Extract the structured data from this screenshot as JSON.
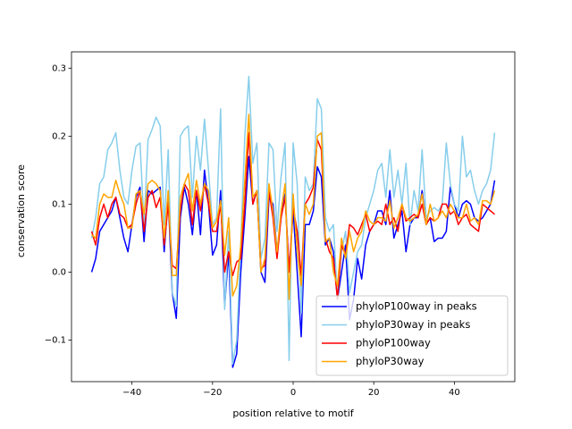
{
  "chart_data": {
    "type": "line",
    "xlabel": "position relative to motif",
    "ylabel": "conservation score",
    "x": [
      -50,
      -49,
      -48,
      -47,
      -46,
      -45,
      -44,
      -43,
      -42,
      -41,
      -40,
      -39,
      -38,
      -37,
      -36,
      -35,
      -34,
      -33,
      -32,
      -31,
      -30,
      -29,
      -28,
      -27,
      -26,
      -25,
      -24,
      -23,
      -22,
      -21,
      -20,
      -19,
      -18,
      -17,
      -16,
      -15,
      -14,
      -13,
      -12,
      -11,
      -10,
      -9,
      -8,
      -7,
      -6,
      -5,
      -4,
      -3,
      -2,
      -1,
      0,
      1,
      2,
      3,
      4,
      5,
      6,
      7,
      8,
      9,
      10,
      11,
      12,
      13,
      14,
      15,
      16,
      17,
      18,
      19,
      20,
      21,
      22,
      23,
      24,
      25,
      26,
      27,
      28,
      29,
      30,
      31,
      32,
      33,
      34,
      35,
      36,
      37,
      38,
      39,
      40,
      41,
      42,
      43,
      44,
      45,
      46,
      47,
      48,
      49,
      50
    ],
    "series": [
      {
        "name": "phyloP100way in peaks",
        "color": "#0000ff",
        "values": [
          0.0,
          0.02,
          0.06,
          0.07,
          0.08,
          0.09,
          0.11,
          0.08,
          0.05,
          0.03,
          0.07,
          0.11,
          0.125,
          0.045,
          0.12,
          0.115,
          0.12,
          0.125,
          0.03,
          0.11,
          -0.03,
          -0.068,
          0.08,
          0.125,
          0.1,
          0.055,
          0.12,
          0.055,
          0.15,
          0.1,
          0.025,
          0.04,
          0.12,
          -0.05,
          0.03,
          -0.14,
          -0.12,
          0.0,
          0.08,
          0.17,
          0.1,
          0.12,
          0.0,
          -0.015,
          0.11,
          0.1,
          0.03,
          0.08,
          0.115,
          0.0,
          0.09,
          0.0,
          -0.095,
          0.07,
          0.07,
          0.09,
          0.155,
          0.14,
          0.04,
          0.05,
          0.03,
          -0.04,
          0.0,
          0.04,
          -0.07,
          -0.04,
          0.02,
          -0.01,
          0.04,
          0.06,
          0.07,
          0.09,
          0.09,
          0.07,
          0.12,
          0.05,
          0.07,
          0.09,
          0.03,
          0.07,
          0.08,
          0.08,
          0.12,
          0.07,
          0.08,
          0.045,
          0.05,
          0.05,
          0.06,
          0.125,
          0.1,
          0.08,
          0.1,
          0.105,
          0.1,
          0.08,
          0.075,
          0.08,
          0.09,
          0.1,
          0.135
        ]
      },
      {
        "name": "phyloP30way in peaks",
        "color": "#87ceeb",
        "values": [
          0.05,
          0.08,
          0.13,
          0.14,
          0.18,
          0.19,
          0.205,
          0.15,
          0.11,
          0.1,
          0.15,
          0.185,
          0.19,
          0.07,
          0.195,
          0.21,
          0.228,
          0.215,
          0.07,
          0.18,
          -0.03,
          -0.05,
          0.2,
          0.21,
          0.215,
          0.11,
          0.2,
          0.15,
          0.225,
          0.15,
          0.07,
          0.08,
          0.24,
          -0.055,
          0.06,
          -0.135,
          -0.1,
          0.04,
          0.2,
          0.288,
          0.16,
          0.19,
          0.02,
          0.05,
          0.19,
          0.18,
          0.06,
          0.14,
          0.19,
          -0.13,
          0.19,
          0.13,
          -0.06,
          0.14,
          0.12,
          0.13,
          0.255,
          0.24,
          0.08,
          0.06,
          0.07,
          -0.04,
          0.03,
          0.06,
          -0.03,
          0.0,
          0.03,
          0.04,
          0.08,
          0.1,
          0.12,
          0.15,
          0.16,
          0.11,
          0.18,
          0.11,
          0.15,
          0.1,
          0.16,
          0.07,
          0.12,
          0.09,
          0.18,
          0.08,
          0.09,
          0.095,
          0.09,
          0.1,
          0.19,
          0.13,
          0.1,
          0.09,
          0.2,
          0.14,
          0.15,
          0.12,
          0.1,
          0.12,
          0.13,
          0.15,
          0.205
        ]
      },
      {
        "name": "phyloP100way",
        "color": "#ff0000",
        "values": [
          0.06,
          0.04,
          0.08,
          0.1,
          0.08,
          0.1,
          0.11,
          0.085,
          0.08,
          0.065,
          0.07,
          0.1,
          0.12,
          0.06,
          0.11,
          0.12,
          0.095,
          0.11,
          0.04,
          0.1,
          0.01,
          0.005,
          0.09,
          0.13,
          0.12,
          0.07,
          0.12,
          0.09,
          0.13,
          0.1,
          0.06,
          0.06,
          0.1,
          0.0,
          0.03,
          -0.005,
          0.015,
          0.02,
          0.1,
          0.205,
          0.1,
          0.12,
          0.005,
          0.01,
          0.12,
          0.08,
          0.02,
          0.08,
          0.11,
          0.0,
          0.095,
          0.06,
          -0.005,
          0.1,
          0.11,
          0.125,
          0.195,
          0.18,
          0.05,
          0.03,
          0.02,
          -0.04,
          0.04,
          0.025,
          0.07,
          0.065,
          0.055,
          0.07,
          0.085,
          0.06,
          0.07,
          0.075,
          0.07,
          0.1,
          0.07,
          0.08,
          0.06,
          0.1,
          0.075,
          0.08,
          0.085,
          0.08,
          0.1,
          0.07,
          0.08,
          0.075,
          0.08,
          0.1,
          0.1,
          0.085,
          0.09,
          0.07,
          0.08,
          0.085,
          0.07,
          0.065,
          0.06,
          0.1,
          0.095,
          0.09,
          0.085
        ]
      },
      {
        "name": "phyloP30way",
        "color": "#ffa500",
        "values": [
          0.055,
          0.05,
          0.1,
          0.115,
          0.11,
          0.11,
          0.135,
          0.115,
          0.1,
          0.065,
          0.065,
          0.115,
          0.12,
          0.085,
          0.13,
          0.135,
          0.13,
          0.12,
          0.05,
          0.12,
          -0.005,
          -0.005,
          0.11,
          0.13,
          0.145,
          0.09,
          0.135,
          0.1,
          0.13,
          0.12,
          0.065,
          0.075,
          0.105,
          0.025,
          0.08,
          -0.035,
          -0.02,
          0.04,
          0.135,
          0.232,
          0.11,
          0.12,
          0.0,
          0.02,
          0.13,
          0.09,
          0.03,
          0.09,
          0.13,
          -0.04,
          0.115,
          0.03,
          -0.02,
          0.1,
          0.085,
          0.1,
          0.2,
          0.205,
          0.045,
          0.05,
          0.0,
          -0.02,
          0.05,
          0.02,
          0.06,
          0.03,
          0.05,
          0.06,
          0.09,
          0.075,
          0.07,
          0.08,
          0.08,
          0.075,
          0.105,
          0.065,
          0.08,
          0.1,
          0.08,
          0.075,
          0.08,
          0.085,
          0.115,
          0.07,
          0.1,
          0.075,
          0.08,
          0.09,
          0.08,
          0.1,
          0.09,
          0.08,
          0.08,
          0.1,
          0.075,
          0.08,
          0.07,
          0.105,
          0.105,
          0.1,
          0.12
        ]
      }
    ],
    "xlim": [
      -55,
      55
    ],
    "ylim": [
      -0.161,
      0.324
    ],
    "xticks": [
      {
        "value": -40,
        "label": "−40"
      },
      {
        "value": -20,
        "label": "−20"
      },
      0,
      20,
      40
    ],
    "yticks": [
      {
        "value": -0.1,
        "label": "−0.1"
      },
      {
        "value": 0,
        "label": "0.0"
      },
      {
        "value": 0.1,
        "label": "0.1"
      },
      {
        "value": 0.2,
        "label": "0.2"
      },
      {
        "value": 0.3,
        "label": "0.3"
      }
    ],
    "legend": "lower right"
  }
}
